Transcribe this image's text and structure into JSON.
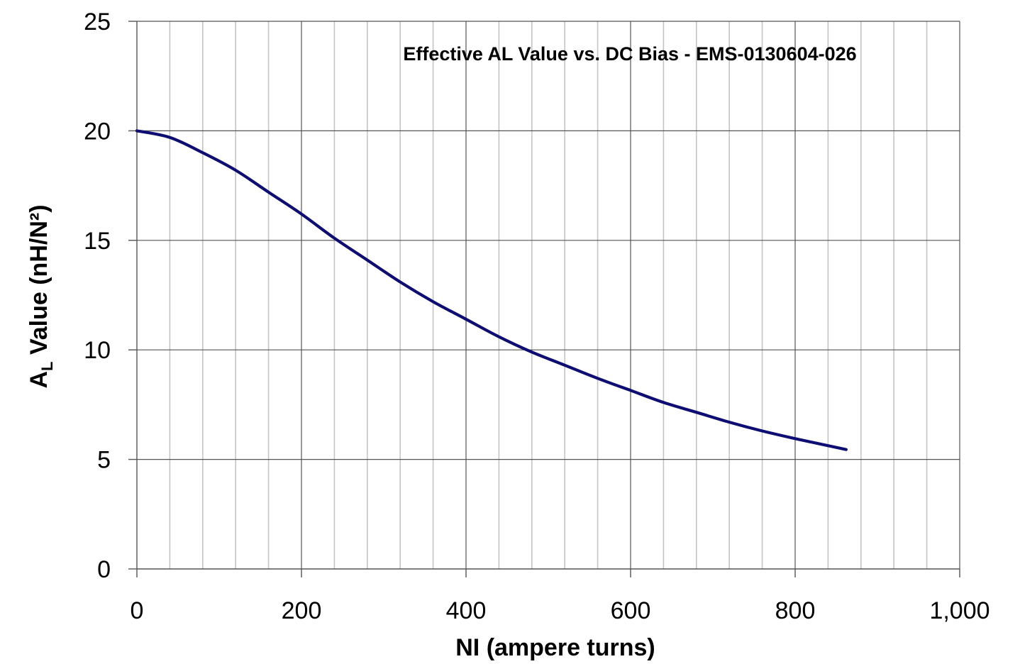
{
  "chart_data": {
    "type": "line",
    "title": "Effective AL Value vs. DC Bias - EMS-0130604-026",
    "xlabel": "NI (ampere turns)",
    "ylabel_main": "A",
    "ylabel_sub": "L",
    "ylabel_rest": " Value (nH/N²)",
    "xlim": [
      0,
      1000
    ],
    "ylim": [
      0,
      25
    ],
    "x_ticks": [
      {
        "value": 0,
        "label": "0"
      },
      {
        "value": 200,
        "label": "200"
      },
      {
        "value": 400,
        "label": "400"
      },
      {
        "value": 600,
        "label": "600"
      },
      {
        "value": 800,
        "label": "800"
      },
      {
        "value": 1000,
        "label": "1,000"
      }
    ],
    "y_ticks": [
      {
        "value": 0,
        "label": "0"
      },
      {
        "value": 5,
        "label": "5"
      },
      {
        "value": 10,
        "label": "10"
      },
      {
        "value": 15,
        "label": "15"
      },
      {
        "value": 20,
        "label": "20"
      },
      {
        "value": 25,
        "label": "25"
      }
    ],
    "x_minor_step": 40,
    "x_major_step": 200,
    "y_major_step": 5,
    "grid": true,
    "line_color": "#0d0d73",
    "series": [
      {
        "x": [
          0,
          40,
          80,
          120,
          160,
          200,
          240,
          280,
          320,
          360,
          400,
          440,
          480,
          520,
          560,
          600,
          640,
          680,
          720,
          760,
          800,
          862
        ],
        "y": [
          20.0,
          19.7,
          19.0,
          18.2,
          17.2,
          16.2,
          15.1,
          14.1,
          13.1,
          12.2,
          11.4,
          10.6,
          9.9,
          9.3,
          8.7,
          8.15,
          7.6,
          7.15,
          6.7,
          6.3,
          5.95,
          5.45
        ]
      }
    ]
  }
}
